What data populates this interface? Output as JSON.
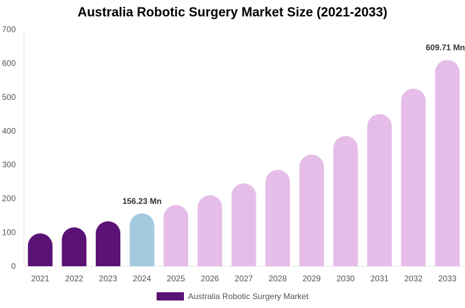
{
  "chart_data": {
    "type": "bar",
    "title": "Australia Robotic Surgery Market Size (2021-2033)",
    "xlabel": "",
    "ylabel": "",
    "categories": [
      "2021",
      "2022",
      "2023",
      "2024",
      "2025",
      "2026",
      "2027",
      "2028",
      "2029",
      "2030",
      "2031",
      "2032",
      "2033"
    ],
    "series": [
      {
        "name": "Australia Robotic Surgery Market",
        "values": [
          97,
          115,
          133,
          156.23,
          181,
          210,
          245,
          285,
          330,
          385,
          450,
          525,
          609.71
        ]
      }
    ],
    "ylim": [
      0,
      700
    ],
    "yticks": [
      0,
      100,
      200,
      300,
      400,
      500,
      600,
      700
    ],
    "data_labels": [
      {
        "index": 3,
        "text": "156.23 Mn"
      },
      {
        "index": 12,
        "text": "609.71 Mn"
      }
    ],
    "bar_colors": [
      "#5a1275",
      "#5a1275",
      "#5a1275",
      "#a4cadf",
      "#e6bde8",
      "#e6bde8",
      "#e6bde8",
      "#e6bde8",
      "#e6bde8",
      "#e6bde8",
      "#e6bde8",
      "#e6bde8",
      "#e6bde8"
    ],
    "legend": {
      "position": "bottom",
      "color": "#5a1275"
    },
    "grid": false
  }
}
